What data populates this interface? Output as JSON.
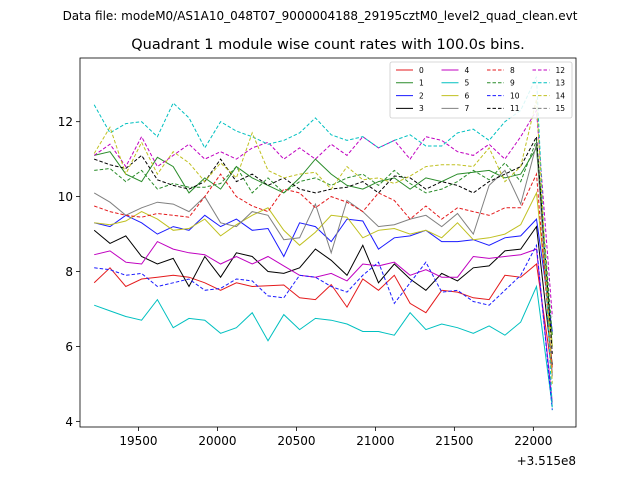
{
  "suptitle": "Data file: modeM0/AS1A10_048T07_9000004188_29195cztM0_level2_quad_clean.evt",
  "chart_data": {
    "type": "line",
    "title": "Quadrant 1 module wise count rates with 100.0s bins.",
    "xlabel": "",
    "ylabel": "",
    "x_offset_label": "+3.515e8",
    "xlim": [
      19130,
      22270
    ],
    "ylim": [
      3.85,
      13.7
    ],
    "xticks": [
      19500,
      20000,
      20500,
      21000,
      21500,
      22000
    ],
    "xtick_labels": [
      "19500",
      "20000",
      "20500",
      "21000",
      "21500",
      "22000"
    ],
    "yticks": [
      4,
      6,
      8,
      10,
      12
    ],
    "ytick_labels": [
      "4",
      "6",
      "8",
      "10",
      "12"
    ],
    "grid": false,
    "legend": {
      "placement": "top-right",
      "columns": 4
    },
    "x": [
      19220,
      19320,
      19420,
      19520,
      19620,
      19720,
      19820,
      19920,
      20020,
      20120,
      20220,
      20320,
      20420,
      20520,
      20620,
      20720,
      20820,
      20920,
      21020,
      21120,
      21220,
      21320,
      21420,
      21520,
      21620,
      21720,
      21820,
      21920,
      22020,
      22120
    ],
    "series": [
      {
        "name": "0",
        "color": "#e41a1c",
        "dash": false,
        "values": [
          7.7,
          8.1,
          7.6,
          7.8,
          7.85,
          7.9,
          7.85,
          7.7,
          7.5,
          7.7,
          7.6,
          7.62,
          7.64,
          7.3,
          7.25,
          7.65,
          7.05,
          7.8,
          7.5,
          7.9,
          7.15,
          6.9,
          7.5,
          7.45,
          7.3,
          7.25,
          7.9,
          7.85,
          8.2,
          5.3
        ]
      },
      {
        "name": "1",
        "color": "#2a8c2a",
        "dash": false,
        "values": [
          11.1,
          11.2,
          10.6,
          10.4,
          11.05,
          10.8,
          10.1,
          10.5,
          10.2,
          10.8,
          10.5,
          10.3,
          10.1,
          10.5,
          11.0,
          10.6,
          10.3,
          10.2,
          10.4,
          10.5,
          10.2,
          10.5,
          10.4,
          10.6,
          10.65,
          10.7,
          10.5,
          10.6,
          11.3,
          6.0
        ]
      },
      {
        "name": "2",
        "color": "#1a1aff",
        "dash": false,
        "values": [
          9.3,
          9.2,
          9.5,
          9.3,
          9.0,
          9.2,
          9.1,
          9.5,
          9.2,
          9.4,
          9.1,
          9.15,
          8.4,
          9.3,
          9.2,
          8.8,
          9.4,
          9.35,
          8.6,
          8.9,
          8.95,
          9.1,
          8.8,
          8.8,
          8.85,
          8.7,
          8.9,
          8.95,
          9.4,
          6.4
        ]
      },
      {
        "name": "3",
        "color": "#000000",
        "dash": false,
        "values": [
          9.1,
          8.75,
          8.95,
          8.4,
          8.2,
          8.35,
          7.6,
          8.4,
          7.85,
          8.5,
          8.4,
          8.0,
          7.95,
          8.1,
          8.6,
          8.3,
          7.9,
          8.7,
          7.7,
          8.2,
          7.8,
          7.5,
          7.95,
          7.75,
          8.1,
          8.15,
          8.55,
          8.6,
          9.2,
          5.5
        ]
      },
      {
        "name": "4",
        "color": "#c000c0",
        "dash": false,
        "values": [
          8.45,
          8.55,
          8.25,
          8.2,
          8.8,
          8.6,
          8.5,
          8.45,
          8.2,
          8.4,
          8.2,
          8.4,
          8.15,
          7.9,
          7.85,
          7.95,
          7.75,
          8.2,
          8.15,
          8.25,
          7.9,
          8.05,
          7.85,
          7.85,
          8.4,
          8.35,
          8.4,
          8.45,
          8.6,
          4.5
        ]
      },
      {
        "name": "5",
        "color": "#00c0c0",
        "dash": false,
        "values": [
          7.1,
          6.95,
          6.8,
          6.7,
          7.25,
          6.5,
          6.75,
          6.7,
          6.35,
          6.5,
          6.9,
          6.15,
          6.85,
          6.45,
          6.75,
          6.7,
          6.6,
          6.4,
          6.4,
          6.3,
          6.9,
          6.45,
          6.6,
          6.5,
          6.35,
          6.55,
          6.3,
          6.65,
          7.6,
          4.4
        ]
      },
      {
        "name": "6",
        "color": "#c0c020",
        "dash": false,
        "values": [
          9.3,
          9.25,
          9.35,
          9.6,
          9.4,
          9.1,
          9.15,
          9.4,
          8.95,
          9.25,
          9.5,
          9.7,
          9.1,
          8.7,
          9.05,
          9.5,
          9.45,
          8.9,
          9.1,
          9.15,
          9.0,
          9.1,
          8.9,
          9.3,
          8.85,
          8.9,
          9.0,
          9.25,
          10.1,
          6.0
        ]
      },
      {
        "name": "7",
        "color": "#808080",
        "dash": false,
        "values": [
          10.1,
          9.85,
          9.5,
          9.7,
          9.85,
          9.8,
          9.6,
          10.0,
          9.3,
          9.2,
          9.6,
          9.5,
          8.85,
          8.9,
          9.8,
          8.5,
          9.9,
          9.6,
          9.2,
          9.25,
          9.4,
          9.5,
          9.2,
          9.55,
          9.0,
          10.3,
          10.7,
          9.8,
          11.4,
          5.2
        ]
      },
      {
        "name": "8",
        "color": "#e41a1c",
        "dash": true,
        "values": [
          9.75,
          9.6,
          9.5,
          9.45,
          9.55,
          9.5,
          9.45,
          10.0,
          10.6,
          10.0,
          9.75,
          9.6,
          10.2,
          10.1,
          9.7,
          10.0,
          9.85,
          9.6,
          10.1,
          9.9,
          9.4,
          9.75,
          9.4,
          9.7,
          9.6,
          9.5,
          9.7,
          9.7,
          10.6,
          5.4
        ]
      },
      {
        "name": "9",
        "color": "#2a8c2a",
        "dash": true,
        "values": [
          10.7,
          10.75,
          10.4,
          10.7,
          10.2,
          10.35,
          10.25,
          10.25,
          10.35,
          10.8,
          10.1,
          10.5,
          10.1,
          10.4,
          10.5,
          10.3,
          10.5,
          10.6,
          10.3,
          10.7,
          10.35,
          10.1,
          10.2,
          10.4,
          10.7,
          10.45,
          10.9,
          10.4,
          11.5,
          6.3
        ]
      },
      {
        "name": "10",
        "color": "#1a1aff",
        "dash": true,
        "values": [
          8.1,
          8.05,
          7.9,
          7.95,
          7.6,
          7.7,
          7.8,
          7.5,
          7.55,
          7.8,
          7.75,
          7.35,
          7.3,
          7.9,
          7.85,
          7.6,
          7.45,
          7.9,
          8.25,
          7.15,
          7.7,
          8.25,
          7.45,
          7.5,
          7.2,
          7.1,
          7.5,
          7.9,
          8.7,
          4.3
        ]
      },
      {
        "name": "11",
        "color": "#000000",
        "dash": true,
        "values": [
          11.0,
          10.85,
          10.75,
          11.1,
          10.45,
          10.3,
          10.2,
          10.4,
          11.0,
          10.4,
          10.6,
          10.3,
          10.5,
          10.2,
          10.1,
          10.2,
          10.25,
          10.4,
          10.1,
          10.55,
          10.5,
          10.2,
          10.4,
          10.3,
          10.1,
          10.4,
          10.6,
          10.8,
          11.6,
          5.8
        ]
      },
      {
        "name": "12",
        "color": "#c000c0",
        "dash": true,
        "values": [
          11.1,
          11.4,
          10.8,
          11.6,
          10.8,
          11.1,
          11.4,
          11.0,
          11.2,
          11.0,
          11.3,
          11.45,
          11.0,
          11.3,
          11.0,
          11.4,
          11.1,
          11.6,
          11.3,
          11.5,
          11.0,
          11.6,
          11.5,
          11.2,
          11.1,
          11.4,
          11.0,
          11.6,
          12.3,
          6.8
        ]
      },
      {
        "name": "13",
        "color": "#00c0c0",
        "dash": true,
        "values": [
          12.45,
          11.7,
          11.95,
          12.0,
          11.6,
          12.5,
          12.1,
          11.3,
          12.0,
          11.75,
          11.6,
          11.4,
          11.5,
          11.7,
          12.1,
          11.65,
          11.5,
          11.6,
          11.3,
          11.5,
          11.65,
          11.35,
          11.35,
          11.7,
          11.8,
          11.5,
          12.0,
          12.3,
          13.2,
          4.3
        ]
      },
      {
        "name": "14",
        "color": "#c0c020",
        "dash": true,
        "values": [
          11.15,
          11.85,
          10.6,
          11.45,
          10.6,
          11.2,
          10.9,
          10.4,
          10.9,
          10.5,
          11.7,
          10.7,
          10.5,
          10.6,
          10.65,
          10.2,
          10.8,
          10.45,
          10.5,
          10.35,
          10.55,
          10.8,
          10.85,
          10.85,
          10.8,
          11.3,
          10.4,
          10.8,
          12.6,
          5.0
        ]
      },
      {
        "name": "15",
        "color": "#808080",
        "dash": true,
        "values": [
          null,
          null,
          null,
          null,
          null,
          null,
          null,
          null,
          null,
          null,
          null,
          null,
          null,
          null,
          null,
          null,
          null,
          null,
          null,
          null,
          null,
          null,
          null,
          null,
          null,
          null,
          null,
          null,
          null,
          null
        ]
      }
    ]
  }
}
